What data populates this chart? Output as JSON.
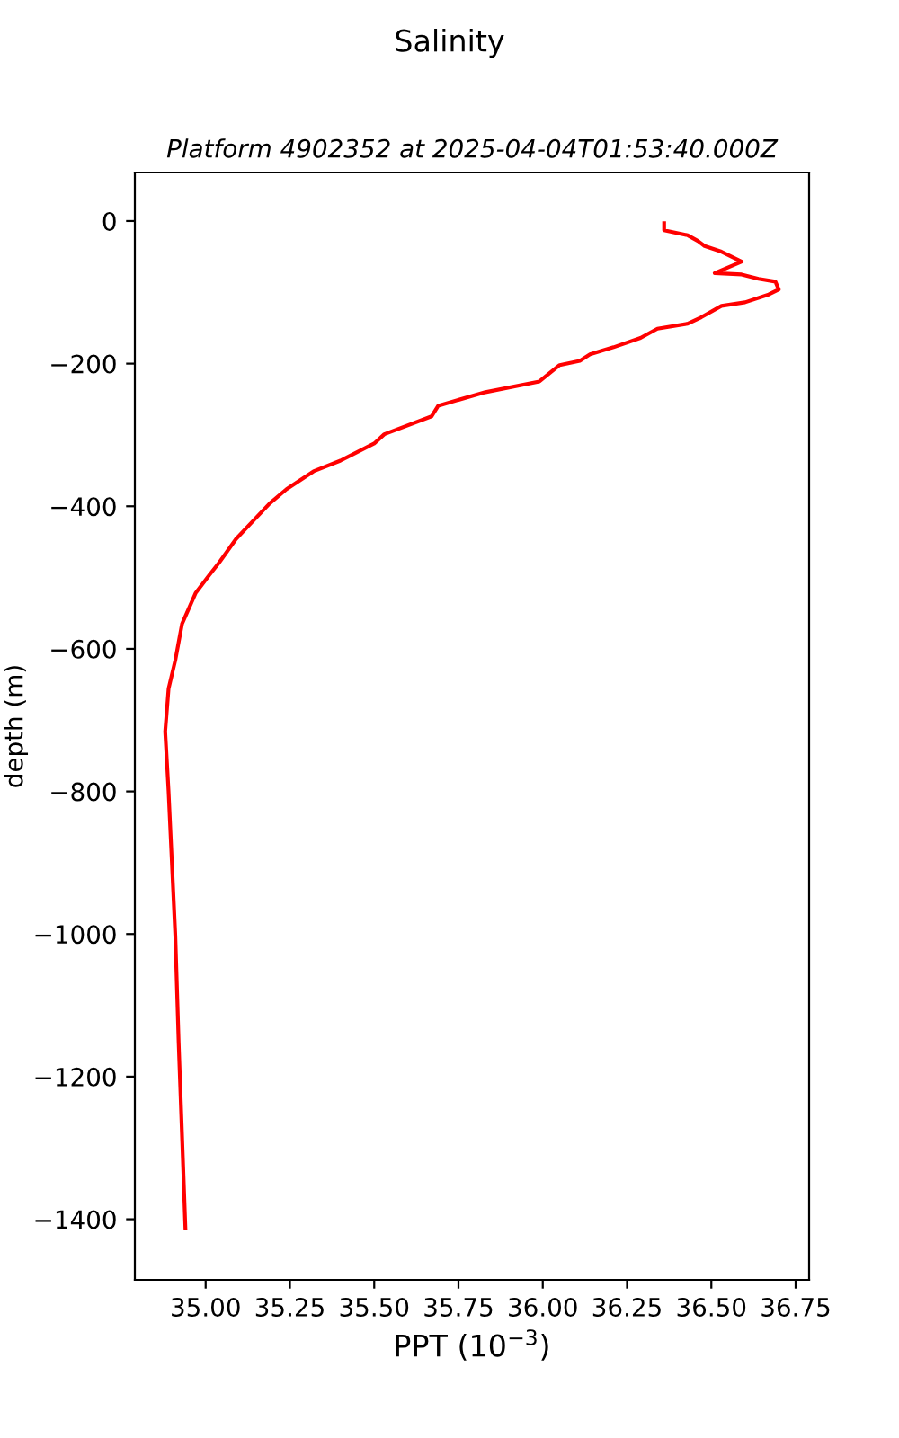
{
  "chart_data": {
    "type": "line",
    "title": "Salinity",
    "subtitle": "Platform 4902352 at 2025-04-04T01:53:40.000Z",
    "xlabel": "PPT (10$^{−3}$)",
    "ylabel": "depth (m)",
    "series": [
      {
        "color": "#ff0000",
        "x": [
          36.36,
          36.36,
          36.43,
          36.46,
          36.48,
          36.53,
          36.56,
          36.59,
          36.51,
          36.59,
          36.64,
          36.69,
          36.7,
          36.67,
          36.6,
          36.53,
          36.47,
          36.43,
          36.34,
          36.29,
          36.21,
          36.14,
          36.11,
          36.05,
          35.99,
          35.83,
          35.69,
          35.67,
          35.53,
          35.5,
          35.4,
          35.32,
          35.24,
          35.19,
          35.14,
          35.09,
          35.04,
          35.01,
          34.97,
          34.93,
          34.91,
          34.89,
          34.88,
          34.89,
          34.9,
          34.91,
          34.92,
          34.94
        ],
        "values": [
          -3,
          -13,
          -20,
          -28,
          -35,
          -43,
          -50,
          -57,
          -73,
          -75,
          -81,
          -85,
          -96,
          -103,
          -114,
          -119,
          -135,
          -144,
          -151,
          -164,
          -177,
          -187,
          -196,
          -202,
          -225,
          -240,
          -259,
          -274,
          -299,
          -312,
          -336,
          -351,
          -376,
          -396,
          -421,
          -446,
          -479,
          -497,
          -522,
          -565,
          -616,
          -656,
          -716,
          -800,
          -901,
          -1002,
          -1153,
          -1413
        ]
      }
    ],
    "xlim": [
      34.79,
      36.79
    ],
    "ylim": [
      -1485,
      68
    ],
    "xticks": [
      {
        "value": 35.0,
        "label": "35.00"
      },
      {
        "value": 35.25,
        "label": "35.25"
      },
      {
        "value": 35.5,
        "label": "35.50"
      },
      {
        "value": 35.75,
        "label": "35.75"
      },
      {
        "value": 36.0,
        "label": "36.00"
      },
      {
        "value": 36.25,
        "label": "36.25"
      },
      {
        "value": 36.5,
        "label": "36.50"
      },
      {
        "value": 36.75,
        "label": "36.75"
      }
    ],
    "yticks": [
      {
        "value": -1400,
        "label": "−1400"
      },
      {
        "value": -1200,
        "label": "−1200"
      },
      {
        "value": -1000,
        "label": "−1000"
      },
      {
        "value": -800,
        "label": "−800"
      },
      {
        "value": -600,
        "label": "−600"
      },
      {
        "value": -400,
        "label": "−400"
      },
      {
        "value": -200,
        "label": "−200"
      },
      0
    ],
    "grid": false,
    "legend": false,
    "marker": "none",
    "line_style": "solid"
  }
}
